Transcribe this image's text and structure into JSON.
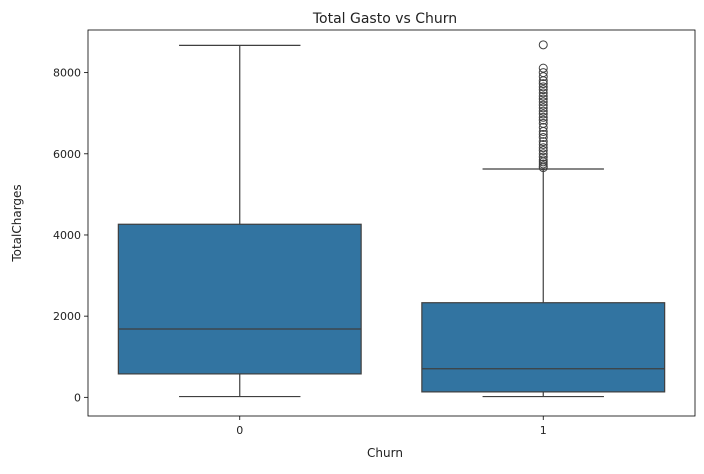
{
  "chart_data": {
    "type": "boxplot",
    "title": "Total Gasto vs Churn",
    "xlabel": "Churn",
    "ylabel": "TotalCharges",
    "categories": [
      "0",
      "1"
    ],
    "ylim": [
      -460,
      9050
    ],
    "yticks": [
      0,
      2000,
      4000,
      6000,
      8000
    ],
    "grid": false,
    "legend": "none",
    "box_color": "#3274a1",
    "line_color": "#3f3f3f",
    "boxes": [
      {
        "category": "0",
        "whisker_low": 18.8,
        "q1": 577,
        "median": 1683,
        "q3": 4264,
        "whisker_high": 8672,
        "outliers": []
      },
      {
        "category": "1",
        "whisker_low": 18.9,
        "q1": 134,
        "median": 704,
        "q3": 2331,
        "whisker_high": 5625,
        "outliers": [
          5660,
          5700,
          5750,
          5800,
          5850,
          5920,
          6000,
          6080,
          6150,
          6230,
          6300,
          6400,
          6480,
          6550,
          6650,
          6750,
          6830,
          6900,
          6980,
          7050,
          7130,
          7200,
          7280,
          7350,
          7420,
          7500,
          7580,
          7650,
          7730,
          7800,
          7900,
          8000,
          8110,
          8685
        ]
      }
    ]
  }
}
